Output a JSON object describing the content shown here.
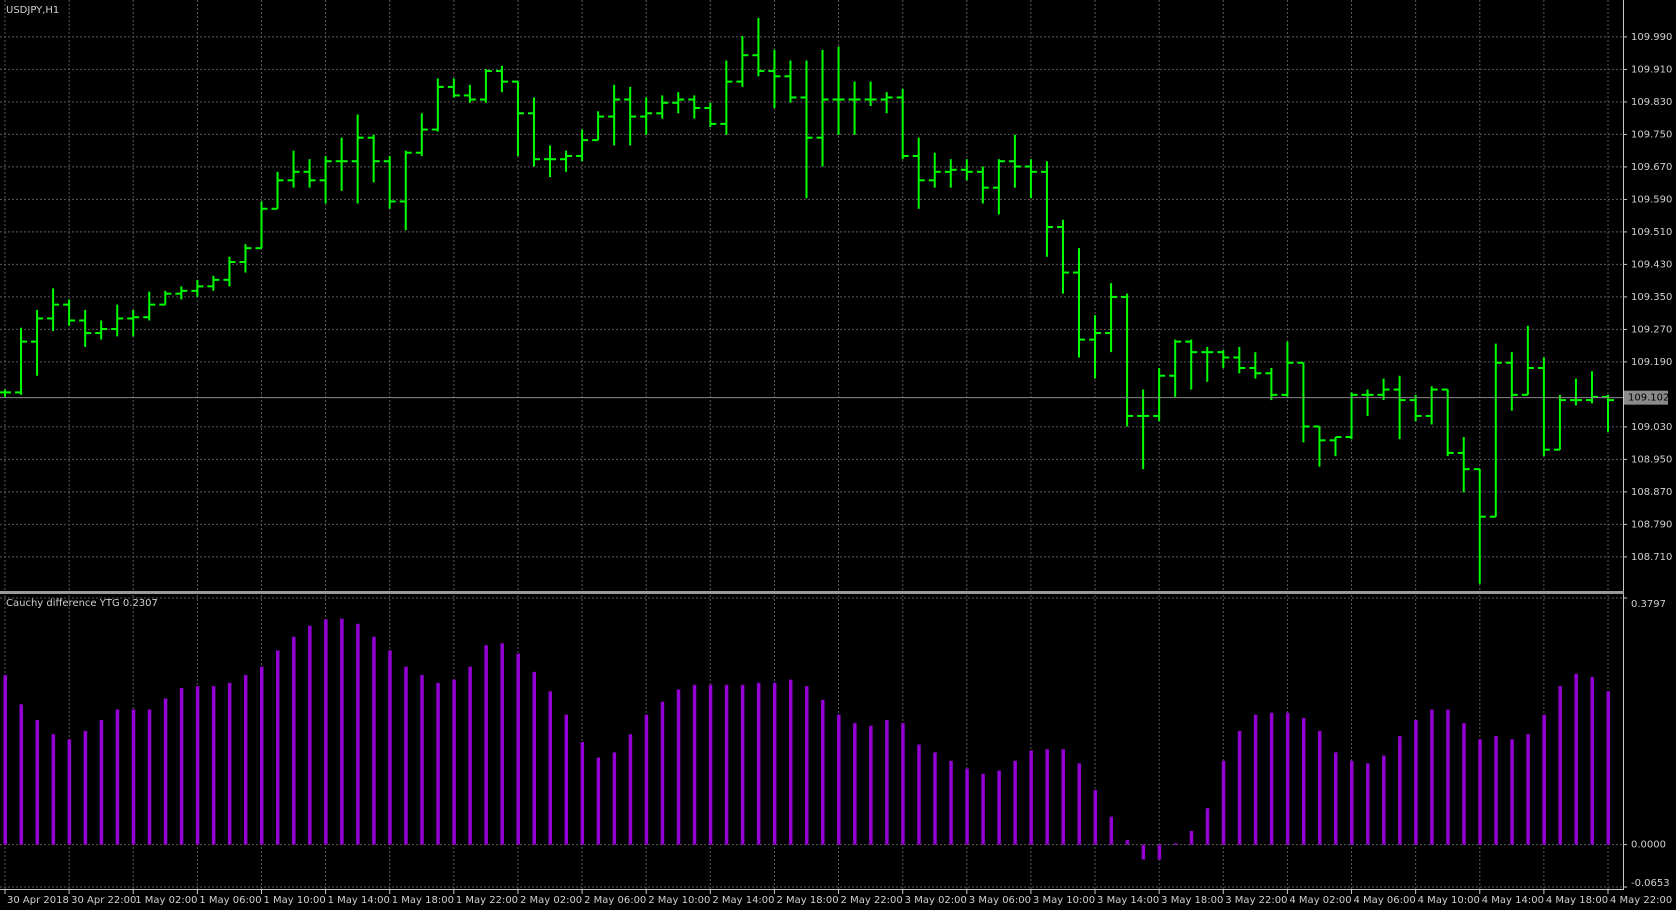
{
  "chart_data": [
    {
      "type": "ohlc",
      "title": "USDJPY,H1",
      "color": "#00ff00",
      "grid": true,
      "current_price": 109.102,
      "categories": [
        "30 Apr 2018",
        null,
        null,
        null,
        "30 Apr 22:00",
        null,
        null,
        null,
        "1 May 02:00",
        null,
        null,
        null,
        "1 May 06:00",
        null,
        null,
        null,
        "1 May 10:00",
        null,
        null,
        null,
        "1 May 14:00",
        null,
        null,
        null,
        "1 May 18:00",
        null,
        null,
        null,
        "1 May 22:00",
        null,
        null,
        null,
        "2 May 02:00",
        null,
        null,
        null,
        "2 May 06:00",
        null,
        null,
        null,
        "2 May 10:00",
        null,
        null,
        null,
        "2 May 14:00",
        null,
        null,
        null,
        "2 May 18:00",
        null,
        null,
        null,
        "2 May 22:00",
        null,
        null,
        null,
        "3 May 02:00",
        null,
        null,
        null,
        "3 May 06:00",
        null,
        null,
        null,
        "3 May 10:00",
        null,
        null,
        null,
        "3 May 14:00",
        null,
        null,
        null,
        "3 May 18:00",
        null,
        null,
        null,
        "3 May 22:00",
        null,
        null,
        null,
        "4 May 02:00",
        null,
        null,
        null,
        "4 May 06:00",
        null,
        null,
        null,
        "4 May 10:00",
        null,
        null,
        null,
        "4 May 14:00",
        null,
        null,
        null,
        "4 May 18:00",
        null,
        null,
        null,
        "4 May 22:00"
      ],
      "open": [
        109.115,
        109.115,
        109.24,
        109.297,
        109.331,
        109.292,
        109.261,
        109.271,
        109.297,
        109.3,
        109.331,
        109.358,
        109.365,
        109.376,
        109.392,
        109.436,
        109.47,
        109.567,
        109.637,
        109.658,
        109.637,
        109.684,
        109.684,
        109.742,
        109.684,
        109.585,
        109.705,
        109.762,
        109.867,
        109.846,
        109.836,
        109.906,
        109.88,
        109.802,
        109.689,
        109.689,
        109.697,
        109.736,
        109.794,
        109.836,
        109.794,
        109.802,
        109.828,
        109.836,
        109.815,
        109.776,
        109.88,
        109.945,
        109.906,
        109.893,
        109.841,
        109.742,
        109.836,
        109.836,
        109.836,
        109.836,
        109.841,
        109.697,
        109.637,
        109.658,
        109.663,
        109.658,
        109.619,
        109.684,
        109.671,
        109.658,
        109.522,
        109.41,
        109.245,
        109.261,
        109.35,
        109.057,
        109.057,
        109.156,
        109.24,
        109.214,
        109.214,
        109.201,
        109.175,
        109.162,
        109.109,
        109.188,
        109.031,
        108.997,
        109.005,
        109.109,
        109.109,
        109.122,
        109.096,
        109.057,
        109.122,
        108.966,
        108.926,
        108.809,
        109.188,
        109.109,
        109.175,
        108.974,
        109.096,
        109.096,
        109.104
      ],
      "high": [
        109.122,
        109.274,
        109.318,
        109.371,
        109.344,
        109.318,
        109.292,
        109.331,
        109.318,
        109.363,
        109.365,
        109.376,
        109.392,
        109.402,
        109.449,
        109.48,
        109.585,
        109.658,
        109.71,
        109.689,
        109.697,
        109.742,
        109.799,
        109.749,
        109.697,
        109.71,
        109.802,
        109.888,
        109.888,
        109.872,
        109.911,
        109.919,
        109.88,
        109.841,
        109.723,
        109.71,
        109.762,
        109.807,
        109.872,
        109.867,
        109.841,
        109.846,
        109.854,
        109.846,
        109.828,
        109.932,
        109.992,
        110.037,
        109.958,
        109.932,
        109.932,
        109.958,
        109.966,
        109.88,
        109.88,
        109.854,
        109.862,
        109.742,
        109.705,
        109.689,
        109.689,
        109.671,
        109.689,
        109.749,
        109.689,
        109.684,
        109.54,
        109.47,
        109.305,
        109.384,
        109.358,
        109.122,
        109.175,
        109.245,
        109.245,
        109.227,
        109.219,
        109.227,
        109.214,
        109.175,
        109.24,
        109.188,
        109.031,
        109.005,
        109.115,
        109.122,
        109.149,
        109.156,
        109.109,
        109.13,
        109.122,
        109.005,
        108.926,
        109.235,
        109.214,
        109.279,
        109.201,
        109.109,
        109.149,
        109.167,
        109.109
      ],
      "low": [
        109.104,
        109.109,
        109.156,
        109.266,
        109.279,
        109.227,
        109.245,
        109.253,
        109.253,
        109.292,
        109.331,
        109.344,
        109.35,
        109.365,
        109.376,
        109.41,
        109.47,
        109.567,
        109.619,
        109.619,
        109.58,
        109.611,
        109.58,
        109.632,
        109.567,
        109.514,
        109.697,
        109.757,
        109.841,
        109.828,
        109.828,
        109.854,
        109.697,
        109.671,
        109.645,
        109.658,
        109.684,
        109.736,
        109.723,
        109.723,
        109.749,
        109.789,
        109.802,
        109.789,
        109.768,
        109.749,
        109.867,
        109.893,
        109.815,
        109.828,
        109.593,
        109.671,
        109.749,
        109.749,
        109.82,
        109.802,
        109.689,
        109.567,
        109.619,
        109.619,
        109.637,
        109.58,
        109.553,
        109.619,
        109.593,
        109.449,
        109.358,
        109.201,
        109.149,
        109.214,
        109.031,
        108.926,
        109.044,
        109.104,
        109.122,
        109.141,
        109.175,
        109.162,
        109.149,
        109.096,
        109.104,
        108.992,
        108.932,
        108.958,
        109.0,
        109.057,
        109.096,
        109.0,
        109.044,
        109.036,
        108.958,
        108.869,
        108.644,
        108.809,
        109.07,
        109.109,
        108.958,
        108.974,
        109.083,
        109.088,
        109.018
      ],
      "close": [
        109.115,
        109.24,
        109.297,
        109.331,
        109.292,
        109.261,
        109.271,
        109.297,
        109.3,
        109.331,
        109.358,
        109.365,
        109.376,
        109.392,
        109.436,
        109.47,
        109.567,
        109.637,
        109.658,
        109.637,
        109.684,
        109.684,
        109.742,
        109.684,
        109.585,
        109.705,
        109.762,
        109.867,
        109.846,
        109.836,
        109.906,
        109.88,
        109.802,
        109.689,
        109.689,
        109.697,
        109.736,
        109.794,
        109.836,
        109.794,
        109.802,
        109.828,
        109.836,
        109.815,
        109.776,
        109.88,
        109.945,
        109.906,
        109.893,
        109.841,
        109.742,
        109.836,
        109.836,
        109.836,
        109.836,
        109.841,
        109.697,
        109.637,
        109.658,
        109.663,
        109.658,
        109.619,
        109.684,
        109.671,
        109.658,
        109.522,
        109.41,
        109.245,
        109.261,
        109.35,
        109.057,
        109.057,
        109.156,
        109.24,
        109.214,
        109.214,
        109.201,
        109.175,
        109.162,
        109.109,
        109.188,
        109.031,
        108.997,
        109.005,
        109.109,
        109.109,
        109.122,
        109.096,
        109.057,
        109.122,
        108.966,
        108.926,
        108.809,
        109.188,
        109.109,
        109.175,
        108.974,
        109.096,
        109.096,
        109.104,
        109.096
      ],
      "ylim": [
        108.631,
        110.076
      ],
      "yticks": [
        {
          "value": 109.99,
          "label": "109.990"
        },
        {
          "value": 109.91,
          "label": "109.910"
        },
        {
          "value": 109.83,
          "label": "109.830"
        },
        {
          "value": 109.75,
          "label": "109.750"
        },
        {
          "value": 109.67,
          "label": "109.670"
        },
        {
          "value": 109.59,
          "label": "109.590"
        },
        {
          "value": 109.51,
          "label": "109.510"
        },
        {
          "value": 109.43,
          "label": "109.430"
        },
        {
          "value": 109.35,
          "label": "109.350"
        },
        {
          "value": 109.27,
          "label": "109.270"
        },
        {
          "value": 109.19,
          "label": "109.190"
        },
        {
          "value": 109.03,
          "label": "109.030"
        },
        {
          "value": 108.95,
          "label": "108.950"
        },
        {
          "value": 108.87,
          "label": "108.870"
        },
        {
          "value": 108.79,
          "label": "108.790"
        },
        {
          "value": 108.71,
          "label": "108.710"
        }
      ]
    },
    {
      "type": "bar",
      "title": "Cauchy difference YTG 0.2307",
      "color": "#9400d3",
      "values": [
        0.261,
        0.216,
        0.192,
        0.17,
        0.162,
        0.175,
        0.192,
        0.208,
        0.208,
        0.208,
        0.225,
        0.241,
        0.244,
        0.244,
        0.249,
        0.261,
        0.274,
        0.299,
        0.32,
        0.337,
        0.347,
        0.348,
        0.34,
        0.32,
        0.299,
        0.274,
        0.261,
        0.249,
        0.254,
        0.274,
        0.307,
        0.31,
        0.294,
        0.266,
        0.236,
        0.2,
        0.158,
        0.134,
        0.142,
        0.17,
        0.2,
        0.22,
        0.239,
        0.246,
        0.246,
        0.246,
        0.246,
        0.249,
        0.249,
        0.254,
        0.244,
        0.223,
        0.2,
        0.187,
        0.183,
        0.192,
        0.187,
        0.154,
        0.142,
        0.129,
        0.117,
        0.109,
        0.114,
        0.129,
        0.145,
        0.147,
        0.147,
        0.125,
        0.084,
        0.043,
        0.007,
        -0.023,
        -0.023,
        0.002,
        0.021,
        0.056,
        0.129,
        0.175,
        0.2,
        0.203,
        0.203,
        0.195,
        0.175,
        0.142,
        0.129,
        0.125,
        0.137,
        0.167,
        0.192,
        0.208,
        0.208,
        0.187,
        0.162,
        0.167,
        0.162,
        0.17,
        0.2,
        0.244,
        0.263,
        0.258,
        0.236
      ],
      "ylim": [
        -0.0653,
        0.3797
      ],
      "yticks": [
        0.3797,
        {
          "value": 0,
          "label": "0.0000"
        },
        -0.0653
      ]
    }
  ]
}
